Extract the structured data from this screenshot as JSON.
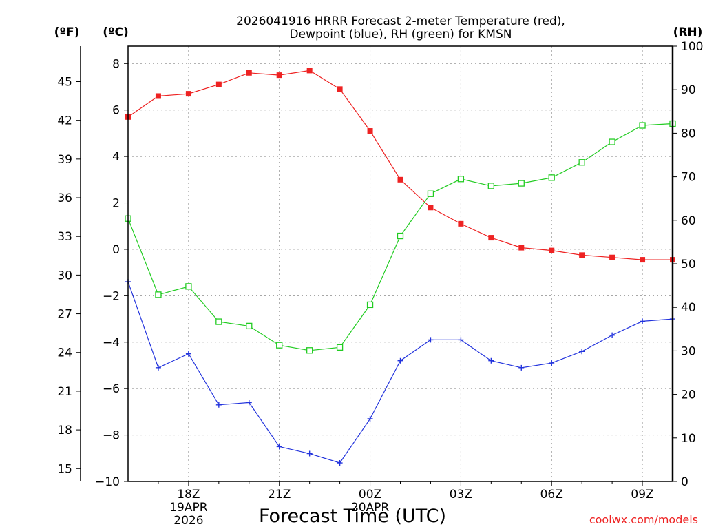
{
  "chart_data": {
    "type": "line",
    "title_line1": "2026041916 HRRR Forecast 2-meter Temperature (red),",
    "title_line2": "Dewpoint (blue), RH (green) for KMSN",
    "ylabel_f": "(ºF)",
    "ylabel_c": "(ºC)",
    "ylabel_rh": "(RH)",
    "xlabel": "Forecast Time (UTC)",
    "watermark": "coolwx.com/models",
    "x_hours": [
      0,
      1,
      2,
      3,
      4,
      5,
      6,
      7,
      8,
      9,
      10,
      11,
      12,
      13,
      14,
      15,
      16,
      17,
      18
    ],
    "x_ticks": [
      {
        "hour": 2,
        "label": "18Z",
        "sub1": "19APR",
        "sub2": "2026"
      },
      {
        "hour": 5,
        "label": "21Z"
      },
      {
        "hour": 8,
        "label": "00Z",
        "sub1": "20APR"
      },
      {
        "hour": 11,
        "label": "03Z"
      },
      {
        "hour": 14,
        "label": "06Z"
      },
      {
        "hour": 17,
        "label": "09Z"
      }
    ],
    "c_axis": {
      "range": [
        -10,
        8.75
      ],
      "ticks": [
        8,
        6,
        4,
        2,
        0,
        -2,
        -4,
        -6,
        -8,
        -10
      ],
      "tick_labels": [
        "8",
        "6",
        "4",
        "2",
        "0",
        "−2",
        "−4",
        "−6",
        "−8",
        "−10"
      ]
    },
    "f_axis": {
      "ticks": [
        45,
        42,
        39,
        36,
        33,
        30,
        27,
        24,
        21,
        18,
        15
      ]
    },
    "rh_axis": {
      "range": [
        0,
        100
      ],
      "ticks": [
        0,
        10,
        20,
        30,
        40,
        50,
        60,
        70,
        80,
        90,
        100
      ]
    },
    "series": [
      {
        "name": "Temperature",
        "axis": "C",
        "color": "#ee2222",
        "marker": "filled-square",
        "values": [
          5.7,
          6.6,
          6.7,
          7.1,
          7.6,
          7.5,
          7.7,
          6.9,
          5.1,
          3.0,
          1.8,
          1.1,
          0.5,
          0.07,
          -0.05,
          -0.25,
          -0.35,
          -0.45,
          -0.45
        ]
      },
      {
        "name": "Dewpoint",
        "axis": "C",
        "color": "#2233dd",
        "marker": "plus",
        "values": [
          -1.4,
          -5.1,
          -4.5,
          -6.7,
          -6.6,
          -8.5,
          -8.8,
          -9.2,
          -7.3,
          -4.8,
          -3.9,
          -3.9,
          -4.8,
          -5.1,
          -4.9,
          -4.4,
          -3.7,
          -3.1,
          -3.0
        ]
      },
      {
        "name": "RH",
        "axis": "RH",
        "color": "#22cc22",
        "marker": "open-square",
        "values": [
          60.4,
          42.9,
          44.8,
          36.7,
          35.7,
          31.3,
          30.1,
          30.8,
          40.6,
          56.4,
          66.1,
          69.5,
          67.9,
          68.5,
          69.8,
          73.3,
          78.0,
          81.8,
          82.2
        ]
      }
    ]
  }
}
